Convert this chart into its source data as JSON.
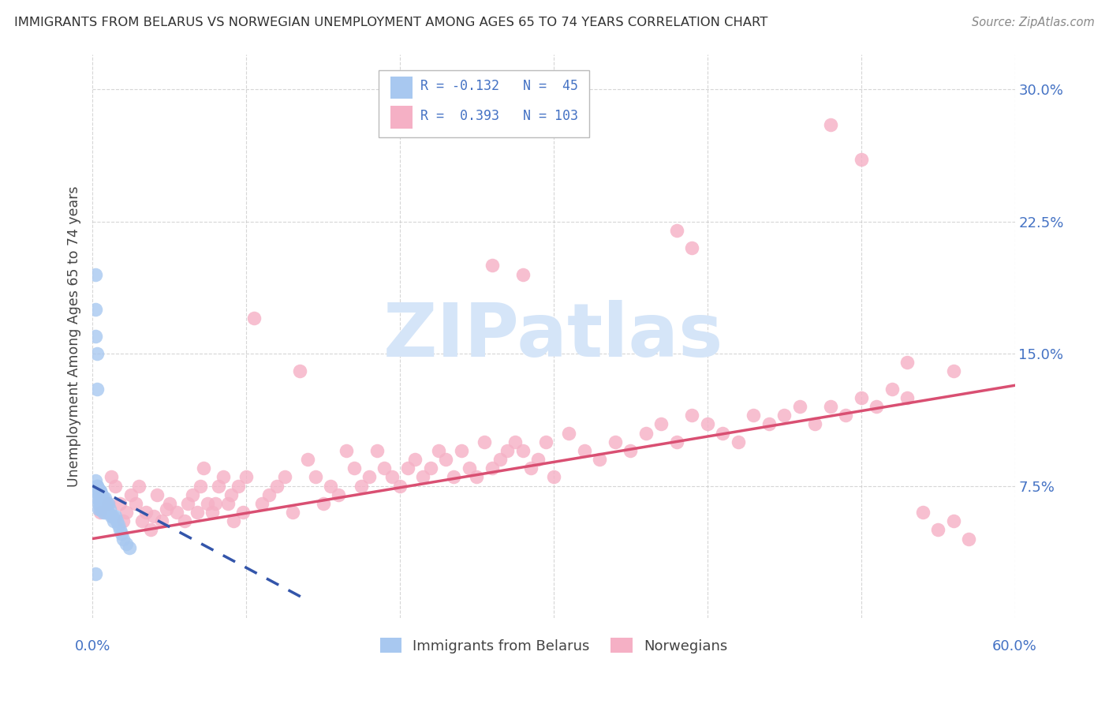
{
  "title": "IMMIGRANTS FROM BELARUS VS NORWEGIAN UNEMPLOYMENT AMONG AGES 65 TO 74 YEARS CORRELATION CHART",
  "source": "Source: ZipAtlas.com",
  "ylabel": "Unemployment Among Ages 65 to 74 years",
  "xlim": [
    0,
    0.6
  ],
  "ylim": [
    0,
    0.32
  ],
  "yticks": [
    0.075,
    0.15,
    0.225,
    0.3
  ],
  "ytick_labels": [
    "7.5%",
    "15.0%",
    "22.5%",
    "30.0%"
  ],
  "legend_label_blue": "Immigrants from Belarus",
  "legend_label_pink": "Norwegians",
  "blue_color": "#a8c8f0",
  "pink_color": "#f5b0c5",
  "blue_line_color": "#3355aa",
  "pink_line_color": "#d94f72",
  "watermark_color": "#d5e5f8",
  "background_color": "#ffffff",
  "grid_color": "#cccccc",
  "blue_R": -0.132,
  "blue_N": 45,
  "pink_R": 0.393,
  "pink_N": 103,
  "blue_scatter_x": [
    0.002,
    0.002,
    0.002,
    0.003,
    0.003,
    0.003,
    0.003,
    0.004,
    0.004,
    0.004,
    0.004,
    0.005,
    0.005,
    0.005,
    0.005,
    0.006,
    0.006,
    0.006,
    0.007,
    0.007,
    0.007,
    0.008,
    0.008,
    0.008,
    0.009,
    0.009,
    0.01,
    0.01,
    0.011,
    0.012,
    0.013,
    0.014,
    0.015,
    0.016,
    0.017,
    0.018,
    0.019,
    0.02,
    0.022,
    0.024,
    0.002,
    0.003,
    0.004,
    0.005,
    0.002
  ],
  "blue_scatter_y": [
    0.195,
    0.175,
    0.16,
    0.15,
    0.13,
    0.075,
    0.068,
    0.072,
    0.07,
    0.065,
    0.062,
    0.072,
    0.068,
    0.065,
    0.062,
    0.07,
    0.066,
    0.062,
    0.068,
    0.065,
    0.06,
    0.068,
    0.065,
    0.06,
    0.065,
    0.062,
    0.065,
    0.06,
    0.062,
    0.058,
    0.058,
    0.055,
    0.058,
    0.055,
    0.053,
    0.05,
    0.048,
    0.045,
    0.042,
    0.04,
    0.078,
    0.075,
    0.073,
    0.072,
    0.025
  ],
  "pink_scatter_x": [
    0.005,
    0.01,
    0.012,
    0.015,
    0.018,
    0.02,
    0.022,
    0.025,
    0.028,
    0.03,
    0.032,
    0.035,
    0.038,
    0.04,
    0.042,
    0.045,
    0.048,
    0.05,
    0.055,
    0.06,
    0.062,
    0.065,
    0.068,
    0.07,
    0.072,
    0.075,
    0.078,
    0.08,
    0.082,
    0.085,
    0.088,
    0.09,
    0.092,
    0.095,
    0.098,
    0.1,
    0.105,
    0.11,
    0.115,
    0.12,
    0.125,
    0.13,
    0.135,
    0.14,
    0.145,
    0.15,
    0.155,
    0.16,
    0.165,
    0.17,
    0.175,
    0.18,
    0.185,
    0.19,
    0.195,
    0.2,
    0.205,
    0.21,
    0.215,
    0.22,
    0.225,
    0.23,
    0.235,
    0.24,
    0.245,
    0.25,
    0.255,
    0.26,
    0.265,
    0.27,
    0.275,
    0.28,
    0.285,
    0.29,
    0.295,
    0.3,
    0.31,
    0.32,
    0.33,
    0.34,
    0.35,
    0.36,
    0.37,
    0.38,
    0.39,
    0.4,
    0.41,
    0.42,
    0.43,
    0.44,
    0.45,
    0.46,
    0.47,
    0.48,
    0.49,
    0.5,
    0.51,
    0.52,
    0.53,
    0.54,
    0.55,
    0.56,
    0.57
  ],
  "pink_scatter_y": [
    0.06,
    0.065,
    0.08,
    0.075,
    0.065,
    0.055,
    0.06,
    0.07,
    0.065,
    0.075,
    0.055,
    0.06,
    0.05,
    0.058,
    0.07,
    0.055,
    0.062,
    0.065,
    0.06,
    0.055,
    0.065,
    0.07,
    0.06,
    0.075,
    0.085,
    0.065,
    0.06,
    0.065,
    0.075,
    0.08,
    0.065,
    0.07,
    0.055,
    0.075,
    0.06,
    0.08,
    0.17,
    0.065,
    0.07,
    0.075,
    0.08,
    0.06,
    0.14,
    0.09,
    0.08,
    0.065,
    0.075,
    0.07,
    0.095,
    0.085,
    0.075,
    0.08,
    0.095,
    0.085,
    0.08,
    0.075,
    0.085,
    0.09,
    0.08,
    0.085,
    0.095,
    0.09,
    0.08,
    0.095,
    0.085,
    0.08,
    0.1,
    0.085,
    0.09,
    0.095,
    0.1,
    0.095,
    0.085,
    0.09,
    0.1,
    0.08,
    0.105,
    0.095,
    0.09,
    0.1,
    0.095,
    0.105,
    0.11,
    0.1,
    0.115,
    0.11,
    0.105,
    0.1,
    0.115,
    0.11,
    0.115,
    0.12,
    0.11,
    0.12,
    0.115,
    0.125,
    0.12,
    0.13,
    0.125,
    0.06,
    0.05,
    0.055,
    0.045
  ],
  "pink_extra_high_x": [
    0.48,
    0.5,
    0.38,
    0.39,
    0.26,
    0.28,
    0.53,
    0.56
  ],
  "pink_extra_high_y": [
    0.28,
    0.26,
    0.22,
    0.21,
    0.2,
    0.195,
    0.145,
    0.14
  ]
}
